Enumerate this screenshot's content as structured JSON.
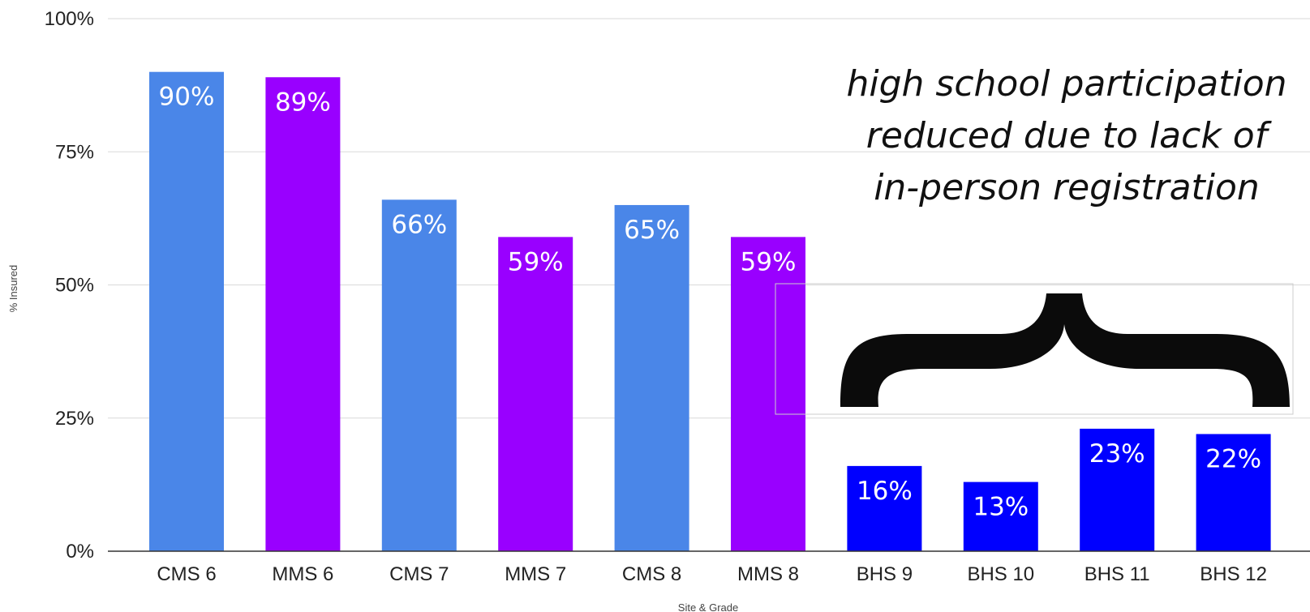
{
  "chart_data": {
    "type": "bar",
    "categories": [
      "CMS 6",
      "MMS 6",
      "CMS 7",
      "MMS 7",
      "CMS 8",
      "MMS 8",
      "BHS 9",
      "BHS 10",
      "BHS 11",
      "BHS 12"
    ],
    "values": [
      90,
      89,
      66,
      59,
      65,
      59,
      16,
      13,
      23,
      22
    ],
    "data_labels": [
      "90%",
      "89%",
      "66%",
      "59%",
      "65%",
      "59%",
      "16%",
      "13%",
      "23%",
      "22%"
    ],
    "bar_colors": [
      "#4a86e8",
      "#9900ff",
      "#4a86e8",
      "#9900ff",
      "#4a86e8",
      "#9900ff",
      "#0000ff",
      "#0000ff",
      "#0000ff",
      "#0000ff"
    ],
    "xlabel": "Site & Grade",
    "ylabel": "% Insured",
    "ylim": [
      0,
      100
    ],
    "yticks": [
      0,
      25,
      50,
      75,
      100
    ],
    "ytick_labels": [
      "0%",
      "25%",
      "50%",
      "75%",
      "100%"
    ],
    "grid": true,
    "annotation": {
      "lines": [
        "high school participation",
        "reduced due to lack of",
        "in-person registration"
      ],
      "brace_target": [
        "BHS 9",
        "BHS 10",
        "BHS 11",
        "BHS 12"
      ]
    }
  }
}
